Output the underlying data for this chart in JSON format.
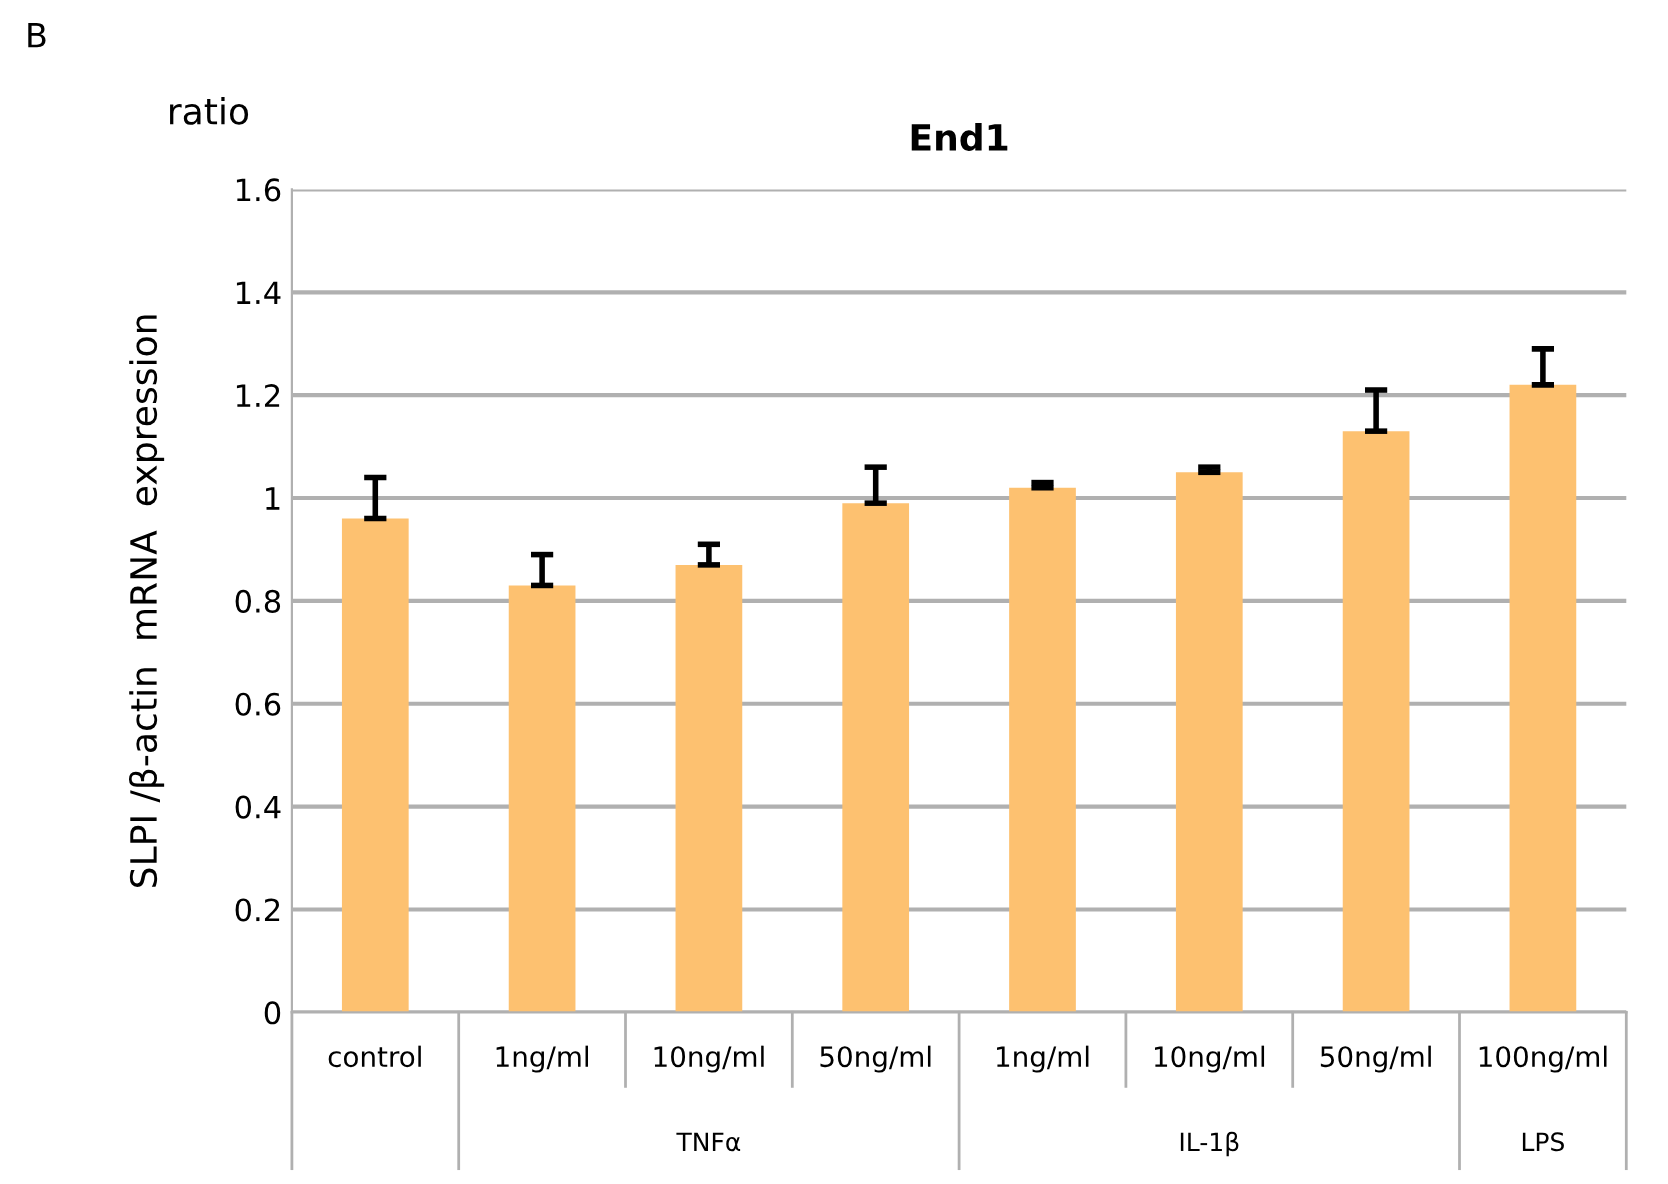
{
  "chart_data": {
    "type": "bar",
    "title": "End1",
    "ylabel": "SLPI /β-actin  mRNA  expression",
    "categories": [
      "control",
      "1ng/ml",
      "10ng/ml",
      "50ng/ml",
      "1ng/ml",
      "10ng/ml",
      "50ng/ml",
      "100ng/ml"
    ],
    "values": [
      0.96,
      0.83,
      0.87,
      0.99,
      1.02,
      1.05,
      1.13,
      1.22
    ],
    "errors": [
      [
        0.96,
        1.04
      ],
      [
        0.83,
        0.89
      ],
      [
        0.87,
        0.91
      ],
      [
        0.99,
        1.06
      ],
      [
        1.02,
        1.03
      ],
      [
        1.05,
        1.06
      ],
      [
        1.13,
        1.21
      ],
      [
        1.22,
        1.29
      ]
    ],
    "color": "#fdc170",
    "ylim": [
      0,
      1.6
    ],
    "yticks": [
      0,
      0.2,
      0.4,
      0.6,
      0.8,
      1,
      1.2,
      1.4,
      1.6
    ],
    "grid": "y",
    "annotations": [
      "B",
      "ratio",
      "TNFα",
      "IL-1β",
      "LPS"
    ]
  }
}
